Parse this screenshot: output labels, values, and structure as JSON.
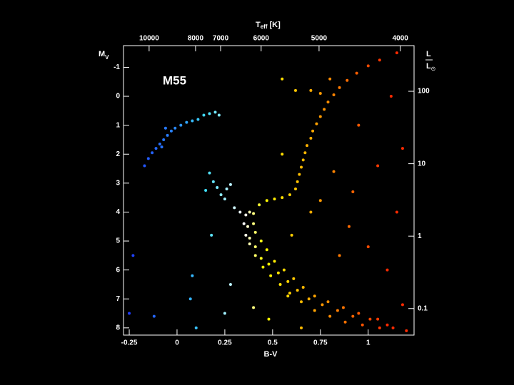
{
  "chart_data": {
    "type": "scatter",
    "title": "M55",
    "xlabel": "B-V",
    "ylabel": {
      "main": "M",
      "sub": "V"
    },
    "x2label": {
      "main": "T",
      "sub": "eff",
      "unit": "[K]"
    },
    "y2label": {
      "numerator": "L",
      "denominator": "L",
      "sub": "☉"
    },
    "xlim": [
      -0.28,
      1.24
    ],
    "xticks": [
      -0.25,
      0,
      0.25,
      0.5,
      0.75,
      1
    ],
    "x2ticks": [
      {
        "value": -0.146,
        "label": "10000"
      },
      {
        "value": 0.097,
        "label": "8000"
      },
      {
        "value": 0.228,
        "label": "7000"
      },
      {
        "value": 0.44,
        "label": "6000"
      },
      {
        "value": 0.743,
        "label": "5000"
      },
      {
        "value": 1.168,
        "label": "4000"
      }
    ],
    "ylim": [
      8.25,
      -1.75
    ],
    "yticks": [
      -1,
      0,
      1,
      2,
      3,
      4,
      5,
      6,
      7,
      8
    ],
    "y2lim": [
      0.043,
      427
    ],
    "y2scale": "log",
    "y2ticks": [
      0.1,
      1,
      10,
      100
    ],
    "colormap": [
      {
        "value": -0.25,
        "color": "#1f3cff"
      },
      {
        "value": 0,
        "color": "#2a8cff"
      },
      {
        "value": 0.15,
        "color": "#40e0ff"
      },
      {
        "value": 0.35,
        "color": "#ffffff"
      },
      {
        "value": 0.45,
        "color": "#ffff00"
      },
      {
        "value": 0.75,
        "color": "#ff9a00"
      },
      {
        "value": 1.1,
        "color": "#ff2a00"
      }
    ],
    "x": [
      0.36,
      0.38,
      0.4,
      0.35,
      0.37,
      0.4,
      0.36,
      0.38,
      0.41,
      0.38,
      0.41,
      0.44,
      0.41,
      0.44,
      0.47,
      0.45,
      0.48,
      0.51,
      0.49,
      0.53,
      0.56,
      0.54,
      0.58,
      0.61,
      0.59,
      0.63,
      0.66,
      0.65,
      0.69,
      0.72,
      0.72,
      0.76,
      0.79,
      0.8,
      0.84,
      0.87,
      0.88,
      0.92,
      0.95,
      0.97,
      1.01,
      1.05,
      1.06,
      1.1,
      1.13,
      0.43,
      0.47,
      0.51,
      0.55,
      0.59,
      0.62,
      0.63,
      0.64,
      0.65,
      0.66,
      0.67,
      0.68,
      0.7,
      0.71,
      0.73,
      0.75,
      0.77,
      0.79,
      0.82,
      0.85,
      0.89,
      0.94,
      1.0,
      1.06,
      0.75,
      0.8,
      0.7,
      -0.17,
      -0.15,
      -0.13,
      -0.11,
      -0.09,
      -0.07,
      -0.05,
      -0.03,
      -0.01,
      0.02,
      0.05,
      0.08,
      0.11,
      0.14,
      0.17,
      0.2,
      0.22,
      -0.06,
      -0.08,
      0.17,
      0.19,
      0.21,
      0.23,
      0.25,
      0.26,
      0.28,
      0.15,
      0.3,
      0.33,
      0.18,
      -0.23,
      -0.25,
      -0.12,
      0.08,
      0.07,
      0.1,
      0.25,
      0.28,
      0.55,
      0.62,
      0.95,
      1.05,
      1.15,
      1.12,
      1.18,
      0.9,
      1.0,
      0.85,
      0.7,
      0.6,
      1.1,
      1.18,
      1.15,
      0.75,
      0.82,
      0.55,
      0.58,
      0.48,
      0.65,
      0.4,
      0.92,
      1.2
    ],
    "values": [
      4.1,
      4.0,
      4.05,
      4.4,
      4.5,
      4.4,
      4.8,
      4.9,
      4.7,
      5.1,
      5.2,
      5.0,
      5.5,
      5.6,
      5.3,
      5.9,
      5.8,
      5.7,
      6.2,
      6.1,
      6.0,
      6.5,
      6.4,
      6.3,
      6.8,
      6.7,
      6.6,
      7.1,
      7.0,
      6.9,
      7.4,
      7.2,
      7.1,
      7.6,
      7.4,
      7.3,
      7.8,
      7.6,
      7.5,
      7.9,
      7.7,
      7.7,
      8.0,
      7.9,
      8.0,
      3.75,
      3.6,
      3.55,
      3.5,
      3.4,
      3.2,
      2.95,
      2.7,
      2.45,
      2.2,
      1.95,
      1.7,
      1.45,
      1.2,
      0.95,
      0.7,
      0.45,
      0.2,
      -0.05,
      -0.3,
      -0.55,
      -0.8,
      -1.05,
      -1.25,
      -0.1,
      -0.6,
      -0.2,
      2.4,
      2.15,
      1.95,
      1.8,
      1.65,
      1.5,
      1.35,
      1.2,
      1.1,
      1.0,
      0.9,
      0.85,
      0.8,
      0.65,
      0.6,
      0.55,
      0.65,
      1.1,
      1.75,
      2.65,
      2.95,
      3.15,
      3.4,
      3.55,
      3.2,
      3.05,
      3.25,
      3.85,
      4.0,
      4.8,
      5.5,
      7.5,
      7.6,
      6.2,
      7.0,
      8.0,
      7.5,
      6.5,
      -0.6,
      -0.2,
      1.0,
      2.4,
      -1.5,
      0.0,
      1.8,
      4.5,
      5.2,
      5.5,
      4.0,
      4.8,
      6.0,
      7.2,
      4.0,
      3.6,
      2.6,
      2.0,
      6.9,
      7.7,
      8.0,
      7.3,
      3.3,
      8.1
    ]
  }
}
